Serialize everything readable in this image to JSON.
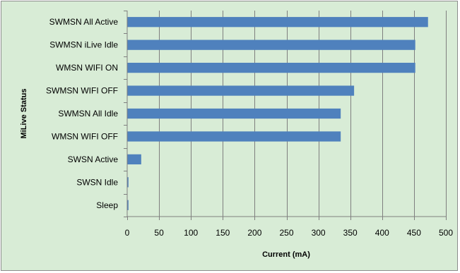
{
  "chart_data": {
    "type": "bar",
    "orientation": "horizontal",
    "categories": [
      "SWMSN All Active",
      "SWMSN iLive Idle",
      "WMSN WIFI ON",
      "SWMSN WIFI OFF",
      "SWMSN All Idle",
      "WMSN WIFI OFF",
      "SWSN Active",
      "SWSN Idle",
      "Sleep"
    ],
    "values": [
      472,
      452,
      452,
      356,
      335,
      335,
      22,
      2,
      2
    ],
    "xlabel": "Current (mA)",
    "ylabel": "MiLive Status",
    "xlim": [
      0,
      500
    ],
    "xticks": [
      0,
      50,
      100,
      150,
      200,
      250,
      300,
      350,
      400,
      450,
      500
    ],
    "grid": "vertical",
    "legend": "none",
    "colors": {
      "bar": "#4f81bd",
      "background": "#d8ecd6",
      "grid": "#7f7f7f"
    }
  }
}
